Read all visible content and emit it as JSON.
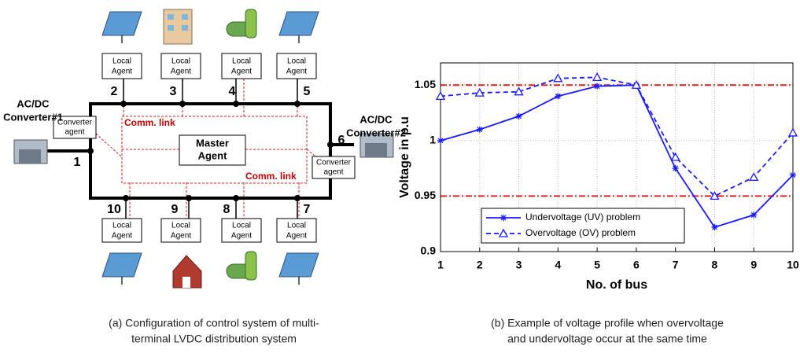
{
  "diagram": {
    "converters": [
      {
        "title_lines": [
          "AC/DC",
          "Converter#1"
        ],
        "agent_lines": [
          "Converter",
          "agent"
        ]
      },
      {
        "title_lines": [
          "AC/DC",
          "Converter#2"
        ],
        "agent_lines": [
          "Converter",
          "agent"
        ]
      }
    ],
    "buses": [
      "1",
      "2",
      "3",
      "4",
      "5",
      "6",
      "7",
      "8",
      "9",
      "10"
    ],
    "local_agents": [
      {
        "bus": "2",
        "lines": [
          "Local",
          "Agent"
        ]
      },
      {
        "bus": "3",
        "lines": [
          "Local",
          "Agent"
        ]
      },
      {
        "bus": "4",
        "lines": [
          "Local",
          "Agent"
        ]
      },
      {
        "bus": "5",
        "lines": [
          "Local",
          "Agent"
        ]
      },
      {
        "bus": "10",
        "lines": [
          "Local",
          "Agent"
        ]
      },
      {
        "bus": "9",
        "lines": [
          "Local",
          "Agent"
        ]
      },
      {
        "bus": "8",
        "lines": [
          "Local",
          "Agent"
        ]
      },
      {
        "bus": "7",
        "lines": [
          "Local",
          "Agent"
        ]
      }
    ],
    "comm_links": [
      "Comm. link",
      "Comm. link"
    ],
    "master_lines": [
      "Master",
      "Agent"
    ]
  },
  "caption_a": [
    "(a) Configuration of control system of multi-",
    "terminal LVDC distribution system"
  ],
  "caption_b": [
    "(b) Example of voltage profile when overvoltage",
    "and undervoltage occur at the same time"
  ],
  "chart_data": {
    "type": "line",
    "x_label": "No. of bus",
    "y_label": "Voltage in p.u",
    "x": [
      1,
      2,
      3,
      4,
      5,
      6,
      7,
      8,
      9,
      10
    ],
    "xlim": [
      1,
      10
    ],
    "xticks": [
      1,
      2,
      3,
      4,
      5,
      6,
      7,
      8,
      9,
      10
    ],
    "ylim": [
      0.9,
      1.07
    ],
    "yticks": [
      0.9,
      0.95,
      1,
      1.05
    ],
    "grid": true,
    "reference_lines": [
      1.05,
      0.95
    ],
    "reference_color": "#e02020",
    "legend": "lower left",
    "series": [
      {
        "name": "Undervoltage (UV) problem",
        "color": "#1a1aff",
        "dash": false,
        "marker": "asterisk",
        "values": [
          1.0,
          1.01,
          1.022,
          1.04,
          1.049,
          1.05,
          0.975,
          0.922,
          0.933,
          0.969
        ]
      },
      {
        "name": "Overvoltage (OV) problem",
        "color": "#1a1aff",
        "dash": true,
        "marker": "triangle",
        "values": [
          1.04,
          1.043,
          1.044,
          1.056,
          1.057,
          1.05,
          0.985,
          0.95,
          0.967,
          1.007
        ]
      }
    ]
  }
}
